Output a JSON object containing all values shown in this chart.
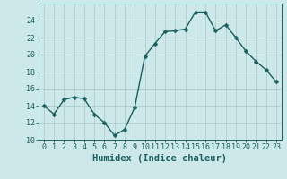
{
  "x": [
    0,
    1,
    2,
    3,
    4,
    5,
    6,
    7,
    8,
    9,
    10,
    11,
    12,
    13,
    14,
    15,
    16,
    17,
    18,
    19,
    20,
    21,
    22,
    23
  ],
  "y": [
    14.0,
    13.0,
    14.7,
    15.0,
    14.8,
    13.0,
    12.0,
    10.5,
    11.2,
    13.8,
    19.8,
    21.3,
    22.7,
    22.8,
    23.0,
    25.0,
    25.0,
    22.8,
    23.5,
    22.0,
    20.4,
    19.2,
    18.2,
    16.8
  ],
  "xlabel": "Humidex (Indice chaleur)",
  "ylim": [
    10,
    26
  ],
  "xlim": [
    -0.5,
    23.5
  ],
  "yticks": [
    10,
    12,
    14,
    16,
    18,
    20,
    22,
    24
  ],
  "xticks": [
    0,
    1,
    2,
    3,
    4,
    5,
    6,
    7,
    8,
    9,
    10,
    11,
    12,
    13,
    14,
    15,
    16,
    17,
    18,
    19,
    20,
    21,
    22,
    23
  ],
  "xtick_labels": [
    "0",
    "1",
    "2",
    "3",
    "4",
    "5",
    "6",
    "7",
    "8",
    "9",
    "10",
    "11",
    "12",
    "13",
    "14",
    "15",
    "16",
    "17",
    "18",
    "19",
    "20",
    "21",
    "22",
    "23"
  ],
  "line_color": "#1a5f5f",
  "marker": "D",
  "marker_size": 2.5,
  "line_width": 1.0,
  "bg_color": "#cce8e8",
  "grid_color": "#b0cccc",
  "tick_color": "#1a5f5f",
  "tick_fontsize": 6.0,
  "xlabel_fontsize": 7.5
}
